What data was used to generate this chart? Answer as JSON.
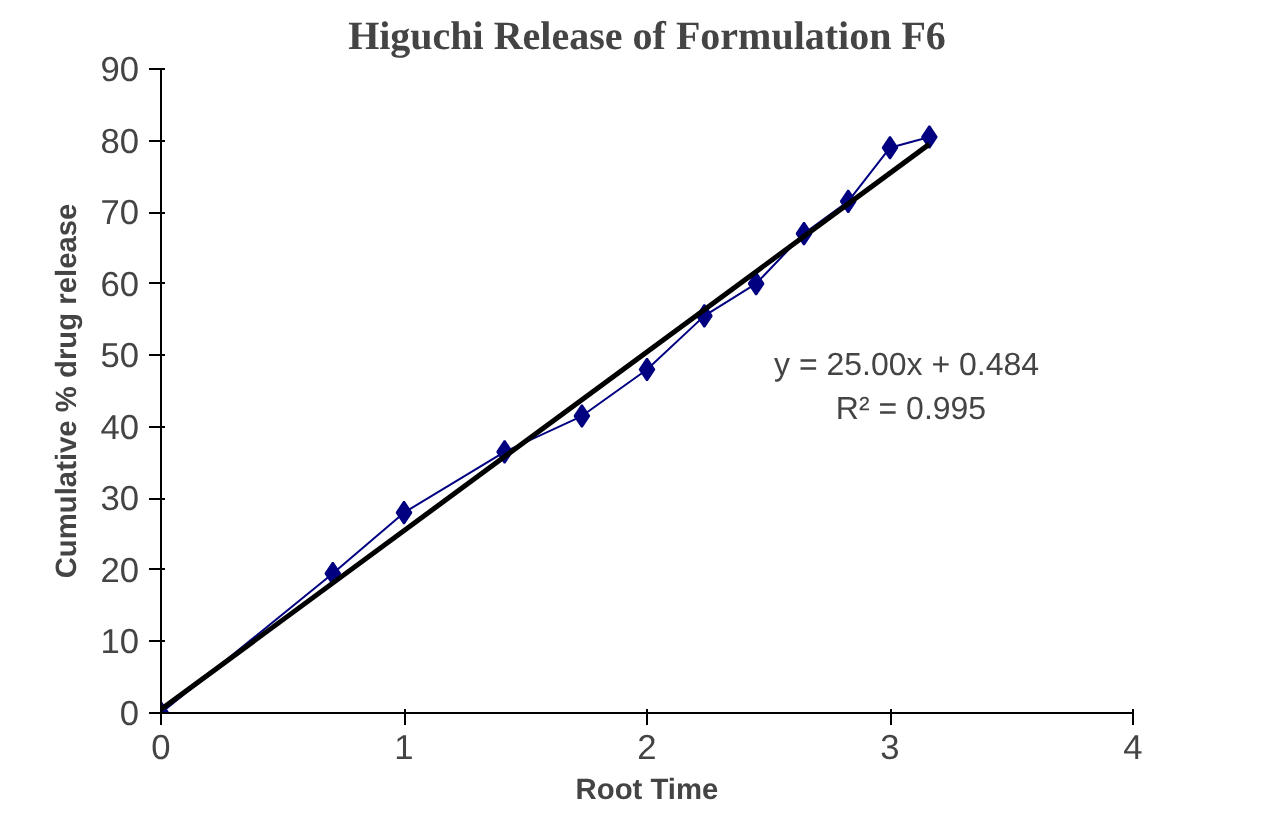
{
  "chart_data": {
    "type": "line",
    "title": "Higuchi Release of Formulation F6",
    "xlabel": "Root Time",
    "ylabel": "Cumulative % drug release",
    "xlim": [
      0,
      4
    ],
    "xticks": [
      0,
      1,
      2,
      3,
      4
    ],
    "ylim": [
      0,
      90
    ],
    "yticks": [
      0,
      10,
      20,
      30,
      40,
      50,
      60,
      70,
      80,
      90
    ],
    "grid": false,
    "series": [
      {
        "color": "#000080",
        "marker": "diamond",
        "x": [
          0,
          0.707,
          1,
          1.414,
          1.732,
          2,
          2.236,
          2.449,
          2.646,
          2.828,
          3,
          3.162
        ],
        "values": [
          0,
          19.5,
          28,
          36.5,
          41.5,
          48,
          55.5,
          60,
          67,
          71.5,
          79,
          80.5
        ]
      },
      {
        "type": "line",
        "color": "#000000",
        "marker": "none",
        "x": [
          0,
          3.162
        ],
        "values": [
          0.5,
          79.5
        ]
      }
    ],
    "annotations": [
      "y = 25.00x  + 0.484",
      "R² = 0.995"
    ]
  }
}
